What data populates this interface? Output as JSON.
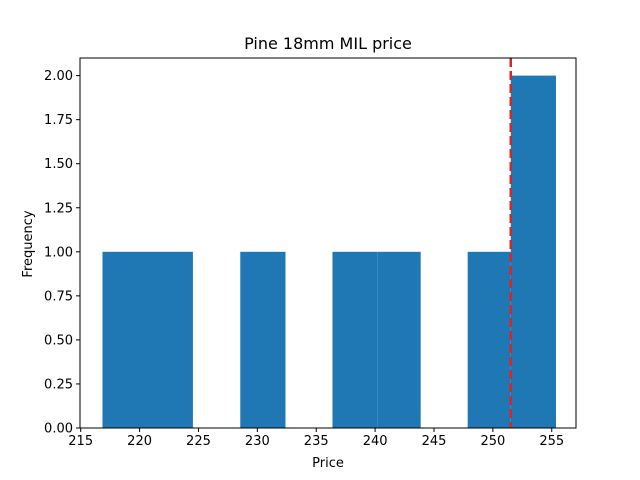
{
  "chart_data": {
    "type": "bar",
    "title": "Pine 18mm MIL price",
    "xlabel": "Price",
    "ylabel": "Frequency",
    "xlim": [
      214.94,
      257.06
    ],
    "ylim": [
      0,
      2.1
    ],
    "xticks": [
      215,
      220,
      225,
      230,
      235,
      240,
      245,
      250,
      255
    ],
    "yticks": [
      0,
      0.25,
      0.5,
      0.75,
      1.0,
      1.25,
      1.5,
      1.75,
      2.0
    ],
    "ytick_labels": [
      "0.00",
      "0.25",
      "0.50",
      "0.75",
      "1.00",
      "1.25",
      "1.50",
      "1.75",
      "2.00"
    ],
    "bins": [
      {
        "x0": 216.85,
        "x1": 220.84,
        "count": 1
      },
      {
        "x0": 220.84,
        "x1": 224.53,
        "count": 1
      },
      {
        "x0": 228.55,
        "x1": 232.39,
        "count": 1
      },
      {
        "x0": 236.38,
        "x1": 240.22,
        "count": 1
      },
      {
        "x0": 240.22,
        "x1": 243.87,
        "count": 1
      },
      {
        "x0": 247.86,
        "x1": 251.52,
        "count": 1
      },
      {
        "x0": 251.52,
        "x1": 255.36,
        "count": 2
      }
    ],
    "bar_color": "#1f77b4",
    "reference_line": {
      "x": 251.52,
      "color": "#d62728",
      "style": "dashed"
    },
    "grid": false,
    "legend": "none"
  }
}
